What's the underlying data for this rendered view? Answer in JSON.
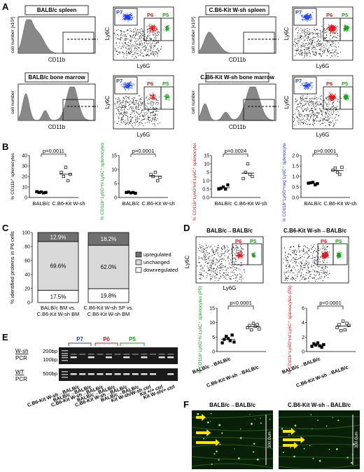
{
  "panels": {
    "A": "A",
    "B": "B",
    "C": "C",
    "D": "D",
    "E": "E",
    "F": "F"
  },
  "panel_a": {
    "histos": [
      {
        "title": "BALB/c spleen",
        "ylabel": "cell number [x10³]",
        "xlabel": "CD11b"
      },
      {
        "title": "C.B6-Kit W-sh spleen",
        "ylabel": "cell number [x10³]",
        "xlabel": "CD11b"
      },
      {
        "title": "BALB/c bone marrow",
        "ylabel": "cell number",
        "xlabel": "CD11b"
      },
      {
        "title": "C.B6-Kit W-sh bone marrow",
        "ylabel": "cell number",
        "xlabel": "CD11b"
      }
    ],
    "dot_ylabel": "Ly6C",
    "dot_xlabel": "Ly6G",
    "gates": {
      "p7": "P7",
      "p6": "P6",
      "p5": "P5"
    }
  },
  "panel_b": {
    "xcats": [
      "BALB/c",
      "C.B6-Kit W-sh"
    ],
    "plots": [
      {
        "ylabel": "% CD11b⁺ splenocytes",
        "p": "p=0.0011",
        "ticks": [
          "0",
          "10",
          "20",
          "30",
          "40"
        ]
      },
      {
        "ylabel": "% CD11b⁺Ly6G^hi Ly6C⁺ splenocytes (P5)",
        "p": "p=0.0001",
        "ticks": [
          "0",
          "5",
          "10",
          "15"
        ]
      },
      {
        "ylabel": "% CD11b⁺Ly6G^int Ly6C⁺ splenocytes (P6)",
        "p": "p=0.0024",
        "ticks": [
          "0.0",
          "0.5",
          "1.0",
          "5",
          "10",
          "15"
        ]
      },
      {
        "ylabel": "% CD11b⁺Ly6G^neg Ly6C⁺ splenocytes (P7)",
        "p": "p>0.0001",
        "ticks": [
          "0.0",
          "0.5",
          "1.0",
          "1.5",
          "2.0"
        ]
      }
    ]
  },
  "panel_c": {
    "ylabel": "% identified proteins in P6 cells",
    "ticks": [
      "0",
      "20",
      "40",
      "60",
      "80",
      "100"
    ],
    "bars": [
      {
        "label1": "BALB/c BM vs.",
        "label2": "C.B6-Kit W-sh BM",
        "up": "12.9%",
        "unch": "69.6%",
        "down": "17.5%",
        "up_v": 12.9,
        "unch_v": 69.6,
        "down_v": 17.5
      },
      {
        "label1": "C.B6-Kit W-sh SP vs.",
        "label2": "C.B6-Kit W-sh BM",
        "up": "18.2%",
        "unch": "62.0%",
        "down": "19.8%",
        "up_v": 18.2,
        "unch_v": 62.0,
        "down_v": 19.8
      }
    ],
    "legend": [
      "upregulated",
      "unchanged",
      "downregulated"
    ]
  },
  "panel_d": {
    "titles": [
      "BALB/c→BALB/c",
      "C.B6-Kit W-sh→BALB/c"
    ],
    "dot_ylabel": "Ly6C",
    "dot_xlabel": "Ly6G",
    "plots": [
      {
        "ylabel": "% CD11b⁺Ly6G^hi Ly6C⁺ splenocytes (P5)",
        "p": "p<0.0001",
        "ticks": [
          "0",
          "5",
          "10",
          "15"
        ]
      },
      {
        "ylabel": "% CD11b⁺Ly6G^int Ly6C⁺ splenocytes (P6)",
        "p": "p<0.0001",
        "ticks": [
          "0",
          "2",
          "4",
          "6"
        ]
      }
    ],
    "xcats": [
      "BALB/c→BALB/c",
      "C.B6-Kit W-sh→BALB/c"
    ]
  },
  "panel_e": {
    "groups": [
      "P7",
      "P6",
      "P5"
    ],
    "row1_label1": "W-sh",
    "row1_label2": "PCR",
    "row2_label1": "WT",
    "row2_label2": "PCR",
    "sizes": [
      "200bp",
      "100bp",
      "500bp"
    ],
    "lanes": [
      "C.B6-Kit W-sh→BALB/c",
      "BALB/c→BALB/c",
      "C.B6-Kit W-sh→BALB/c",
      "BALB/c→BALB/c",
      "C.B6-Kit W-sh→BALB/c",
      "BALB/c→BALB/c",
      "Kit W-sh/W-sh ctrl",
      "Kit +/+ ctrl",
      "Kit W-sh/+ ctrl"
    ]
  },
  "panel_f": {
    "titles": [
      "BALB/c→BALB/c",
      "C.B6-Kit W-sh→BALB/c"
    ],
    "scale": "300.0um"
  }
}
